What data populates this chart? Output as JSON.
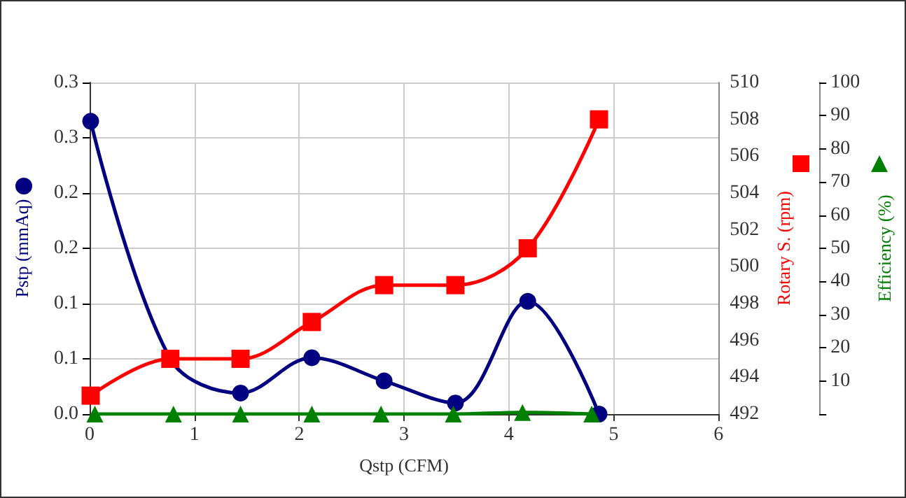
{
  "chart_data": {
    "type": "line",
    "xlabel": "Qstp (CFM)",
    "ylabel": "Pstp (mmAq)",
    "y2label": "Rotary S. (rpm)",
    "y3label": "Efficiency (%)",
    "x": [
      0.01,
      0.77,
      1.44,
      2.12,
      2.81,
      3.49,
      4.18,
      4.86
    ],
    "series": [
      {
        "color": "#000080",
        "marker": "circle",
        "values": [
          0.265,
          0.05,
          0.019,
          0.051,
          0.03,
          0.01,
          0.102,
          0
        ]
      },
      {
        "color": "#ff0000",
        "marker": "square",
        "axis": "y2",
        "values": [
          493,
          495,
          495,
          497,
          499,
          499,
          501,
          508
        ]
      },
      {
        "color": "#008000",
        "marker": "triangle",
        "axis": "y3",
        "x": [
          0.05,
          0.8,
          1.44,
          2.12,
          2.78,
          3.47,
          4.13,
          4.79
        ],
        "values": [
          0,
          0,
          0,
          0,
          0,
          0,
          0.5,
          0
        ]
      }
    ],
    "xlim": [
      0,
      6
    ],
    "xticks": [
      0,
      1,
      2,
      3,
      4,
      5,
      6
    ],
    "ylim": [
      0,
      0.3
    ],
    "yticks": [
      {
        "value": 0,
        "label": "0.0"
      },
      {
        "value": 0.05,
        "label": "0.1"
      },
      {
        "value": 0.1,
        "label": "0.1"
      },
      {
        "value": 0.15,
        "label": "0.2"
      },
      {
        "value": 0.2,
        "label": "0.2"
      },
      {
        "value": 0.25,
        "label": "0.3"
      },
      {
        "value": 0.3,
        "label": "0.3"
      }
    ],
    "y2lim": [
      492,
      510
    ],
    "y2ticks": [
      492,
      494,
      496,
      498,
      500,
      502,
      504,
      506,
      508,
      510
    ],
    "y3lim": [
      0,
      100
    ],
    "y3ticks": [
      {
        "value": 0,
        "label": null
      },
      10,
      20,
      30,
      40,
      50,
      60,
      70,
      80,
      90,
      100
    ],
    "grid": true
  }
}
